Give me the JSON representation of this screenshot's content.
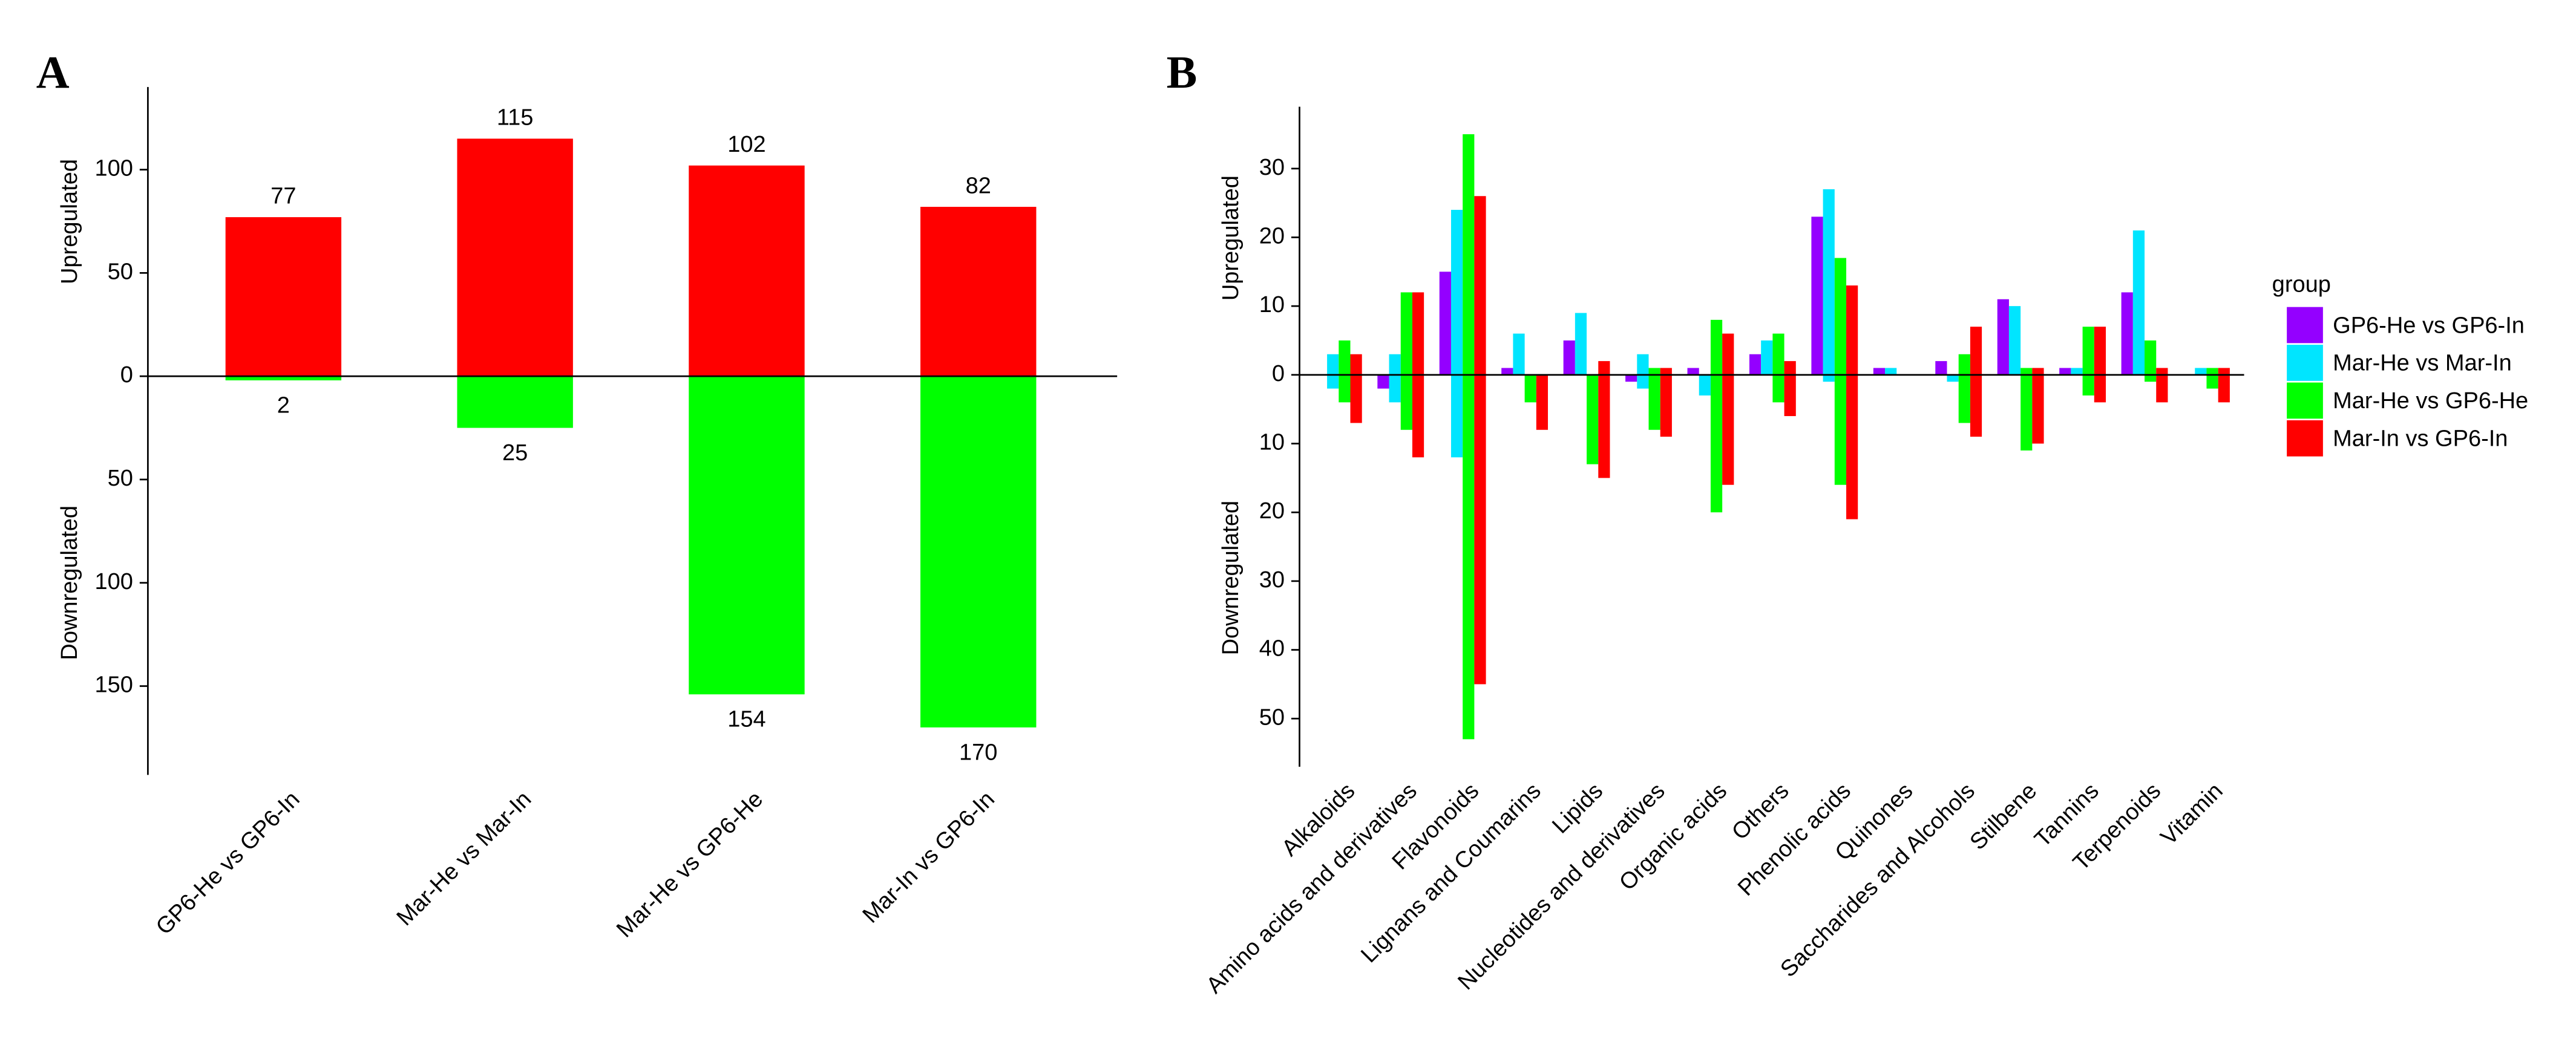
{
  "chart_data": [
    {
      "type": "bar",
      "panel": "A",
      "ylabel_up": "Upregulated",
      "ylabel_down": "Downregulated",
      "categories": [
        "GP6-He vs GP6-In",
        "Mar-He vs Mar-In",
        "Mar-He vs GP6-He",
        "Mar-In vs GP6-In"
      ],
      "series": [
        {
          "color": "#ff0000",
          "values": [
            77,
            115,
            102,
            82
          ]
        },
        {
          "color": "#00ff00",
          "values": [
            -2,
            -25,
            -154,
            -170
          ],
          "value_labels": [
            "2",
            "25",
            "154",
            "170"
          ]
        }
      ],
      "ylim": [
        -193,
        140
      ],
      "yticks": [
        {
          "value": -150,
          "label": "150"
        },
        {
          "value": -100,
          "label": "100"
        },
        {
          "value": -50,
          "label": "50"
        },
        0,
        50,
        100
      ],
      "data_labels": true
    },
    {
      "type": "grouped_bar",
      "panel": "B",
      "ylabel_up": "Upregulated",
      "ylabel_down": "Downregulated",
      "categories": [
        "Alkaloids",
        "Amino acids and derivatives",
        "Flavonoids",
        "Lignans and Coumarins",
        "Lipids",
        "Nucleotides and derivatives",
        "Organic acids",
        "Others",
        "Phenolic acids",
        "Quinones",
        "Saccharides and Alcohols",
        "Stilbene",
        "Tannins",
        "Terpenoids",
        "Vitamin"
      ],
      "legend_title": "group",
      "series": [
        {
          "name": "GP6-He vs GP6-In",
          "color": "#9400ff",
          "values": [
            0,
            0,
            15,
            1,
            5,
            0,
            1,
            3,
            23,
            1,
            2,
            11,
            1,
            12,
            0
          ],
          "down": [
            0,
            -2,
            0,
            0,
            0,
            -1,
            0,
            0,
            0,
            0,
            0,
            0,
            0,
            0,
            0
          ]
        },
        {
          "name": "Mar-He vs Mar-In",
          "color": "#00e5ff",
          "values": [
            3,
            3,
            24,
            6,
            9,
            3,
            0,
            5,
            27,
            1,
            0,
            10,
            1,
            21,
            1
          ],
          "down": [
            -2,
            -4,
            -12,
            0,
            0,
            -2,
            -3,
            0,
            -1,
            0,
            -1,
            0,
            0,
            0,
            0
          ]
        },
        {
          "name": "Mar-He vs GP6-He",
          "color": "#00ff00",
          "values": [
            5,
            12,
            35,
            0,
            0,
            1,
            8,
            6,
            17,
            0,
            3,
            1,
            7,
            5,
            1
          ],
          "down": [
            -4,
            -8,
            -53,
            -4,
            -13,
            -8,
            -20,
            -4,
            -16,
            0,
            -7,
            -11,
            -3,
            -1,
            -2
          ]
        },
        {
          "name": "Mar-In vs GP6-In",
          "color": "#ff0000",
          "values": [
            3,
            12,
            26,
            0,
            2,
            1,
            6,
            2,
            13,
            0,
            7,
            1,
            7,
            1,
            1
          ],
          "down": [
            -7,
            -12,
            -45,
            -8,
            -15,
            -9,
            -16,
            -6,
            -21,
            0,
            -9,
            -10,
            -4,
            -4,
            -4
          ]
        }
      ],
      "ylim": [
        -57,
        39
      ],
      "yticks": [
        {
          "value": -50,
          "label": "50"
        },
        {
          "value": -40,
          "label": "40"
        },
        {
          "value": -30,
          "label": "30"
        },
        {
          "value": -20,
          "label": "20"
        },
        {
          "value": -10,
          "label": "10"
        },
        0,
        10,
        20,
        30
      ]
    }
  ]
}
